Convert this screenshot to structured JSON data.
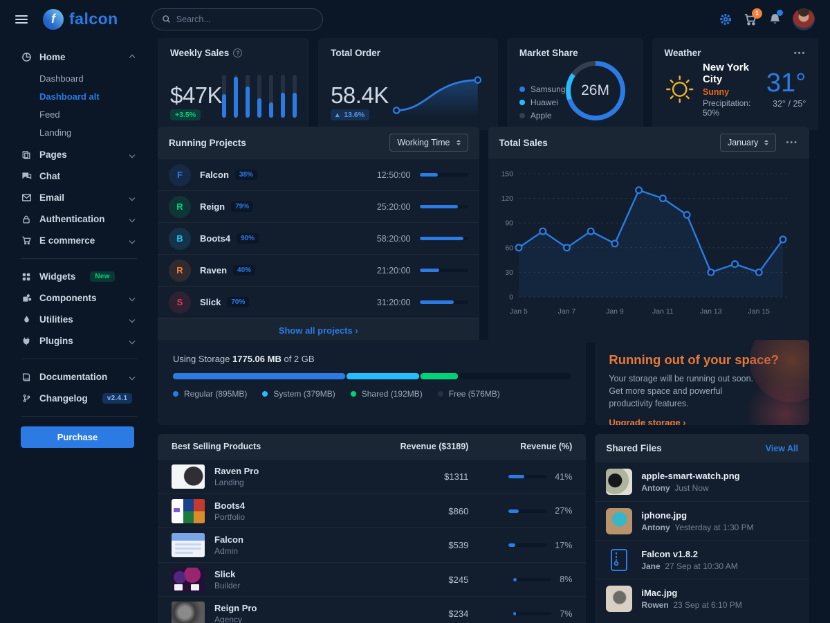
{
  "colors": {
    "primary": "#2c7be5",
    "info": "#27bcfd",
    "success": "#00d27a",
    "warning": "#f5803e",
    "danger": "#e63757",
    "gray": "#344050"
  },
  "topbar": {
    "brand": "falcon",
    "search_placeholder": "Search...",
    "cart_badge": "1"
  },
  "sidebar": {
    "groups": [
      {
        "label": "Home"
      },
      {
        "label": "Pages"
      },
      {
        "label": "Chat"
      },
      {
        "label": "Email"
      },
      {
        "label": "Authentication"
      },
      {
        "label": "E commerce"
      },
      {
        "label": "Widgets",
        "badge": "New"
      },
      {
        "label": "Components"
      },
      {
        "label": "Utilities"
      },
      {
        "label": "Plugins"
      },
      {
        "label": "Documentation"
      },
      {
        "label": "Changelog",
        "badge": "v2.4.1"
      }
    ],
    "home_children": [
      {
        "label": "Dashboard"
      },
      {
        "label": "Dashboard alt"
      },
      {
        "label": "Feed"
      },
      {
        "label": "Landing"
      }
    ],
    "active_child": "Dashboard alt",
    "purchase_label": "Purchase"
  },
  "weekly_sales": {
    "title": "Weekly Sales",
    "value": "$47K",
    "badge": "+3.5%"
  },
  "total_order": {
    "title": "Total Order",
    "value": "58.4K",
    "badge": "13.6%"
  },
  "market_share": {
    "title": "Market Share",
    "center": "26M",
    "legend": [
      {
        "label": "Samsung",
        "color": "#2c7be5"
      },
      {
        "label": "Huawei",
        "color": "#27bcfd"
      },
      {
        "label": "Apple",
        "color": "#344050"
      }
    ]
  },
  "weather": {
    "title": "Weather",
    "menu": "•••",
    "city": "New York City",
    "condition": "Sunny",
    "precipitation": "Precipitation: 50%",
    "temp": "31°",
    "range": "32° / 25°"
  },
  "running_projects": {
    "title": "Running Projects",
    "select": "Working Time",
    "items": [
      {
        "initial": "F",
        "name": "Falcon",
        "pct_label": "38%",
        "time": "12:50:00",
        "progress": 38,
        "color": "#2c7be5"
      },
      {
        "initial": "R",
        "name": "Reign",
        "pct_label": "79%",
        "time": "25:20:00",
        "progress": 79,
        "color": "#00d27a"
      },
      {
        "initial": "B",
        "name": "Boots4",
        "pct_label": "90%",
        "time": "58:20:00",
        "progress": 90,
        "color": "#27bcfd"
      },
      {
        "initial": "R",
        "name": "Raven",
        "pct_label": "40%",
        "time": "21:20:00",
        "progress": 40,
        "color": "#f5803e"
      },
      {
        "initial": "S",
        "name": "Slick",
        "pct_label": "70%",
        "time": "31:20:00",
        "progress": 70,
        "color": "#e63757"
      }
    ],
    "footer_link": "Show all projects ›"
  },
  "total_sales": {
    "title": "Total Sales",
    "select": "January",
    "menu": "•••"
  },
  "chart_data": {
    "weekly_sales_bars": {
      "type": "bar",
      "values": [
        55,
        95,
        72,
        45,
        35,
        58,
        58
      ],
      "title": "Weekly Sales",
      "note": "relative bar heights %"
    },
    "total_order_spark": {
      "type": "area",
      "values": [
        12,
        13,
        45,
        88,
        92
      ],
      "title": "Total Order"
    },
    "market_share_donut": {
      "type": "pie",
      "labels": [
        "Samsung",
        "Huawei",
        "Apple"
      ],
      "values": [
        70,
        15,
        15
      ],
      "colors": [
        "#2c7be5",
        "#27bcfd",
        "#344050"
      ],
      "center_label": "26M"
    },
    "total_sales_line": {
      "type": "line",
      "title": "Total Sales",
      "x": [
        "Jan 5",
        "Jan 6",
        "Jan 7",
        "Jan 8",
        "Jan 9",
        "Jan 10",
        "Jan 11",
        "Jan 12",
        "Jan 13",
        "Jan 14",
        "Jan 15",
        "Jan 16"
      ],
      "values": [
        60,
        80,
        60,
        80,
        65,
        130,
        120,
        100,
        30,
        40,
        30,
        70
      ],
      "ylim": [
        0,
        150
      ],
      "yticks": [
        0,
        30,
        60,
        90,
        120,
        150
      ],
      "xtick_labels": [
        "Jan 5",
        "Jan 7",
        "Jan 9",
        "Jan 11",
        "Jan 13",
        "Jan 15"
      ],
      "grid": "dashed"
    }
  },
  "storage": {
    "label_prefix": "Using Storage",
    "used": "1775.06 MB",
    "label_suffix": "of 2 GB",
    "segments": [
      {
        "label": "Regular (895MB)",
        "pct": 43.7,
        "color": "#2c7be5"
      },
      {
        "label": "System (379MB)",
        "pct": 18.5,
        "color": "#27bcfd"
      },
      {
        "label": "Shared (192MB)",
        "pct": 9.4,
        "color": "#00d27a"
      },
      {
        "label": "Free (576MB)",
        "pct": 28.4,
        "color": "#0b1727"
      }
    ]
  },
  "space_promo": {
    "heading": "Running out of your space?",
    "body": "Your storage will be running out soon. Get more space and powerful productivity features.",
    "link": "Upgrade storage ›"
  },
  "best_selling": {
    "title": "Best Selling Products",
    "col_revenue": "Revenue ($3189)",
    "col_pct": "Revenue (%)",
    "items": [
      {
        "name": "Raven Pro",
        "category": "Landing",
        "price": "$1311",
        "pct": 41,
        "pct_label": "41%"
      },
      {
        "name": "Boots4",
        "category": "Portfolio",
        "price": "$860",
        "pct": 27,
        "pct_label": "27%"
      },
      {
        "name": "Falcon",
        "category": "Admin",
        "price": "$539",
        "pct": 17,
        "pct_label": "17%"
      },
      {
        "name": "Slick",
        "category": "Builder",
        "price": "$245",
        "pct": 8,
        "pct_label": "8%"
      },
      {
        "name": "Reign Pro",
        "category": "Agency",
        "price": "$234",
        "pct": 7,
        "pct_label": "7%"
      }
    ]
  },
  "shared_files": {
    "title": "Shared Files",
    "link": "View All",
    "items": [
      {
        "name": "apple-smart-watch.png",
        "user": "Antony",
        "time": "Just Now"
      },
      {
        "name": "iphone.jpg",
        "user": "Antony",
        "time": "Yesterday at 1:30 PM"
      },
      {
        "name": "Falcon v1.8.2",
        "user": "Jane",
        "time": "27 Sep at 10:30 AM"
      },
      {
        "name": "iMac.jpg",
        "user": "Rowen",
        "time": "23 Sep at 6:10 PM"
      }
    ]
  }
}
